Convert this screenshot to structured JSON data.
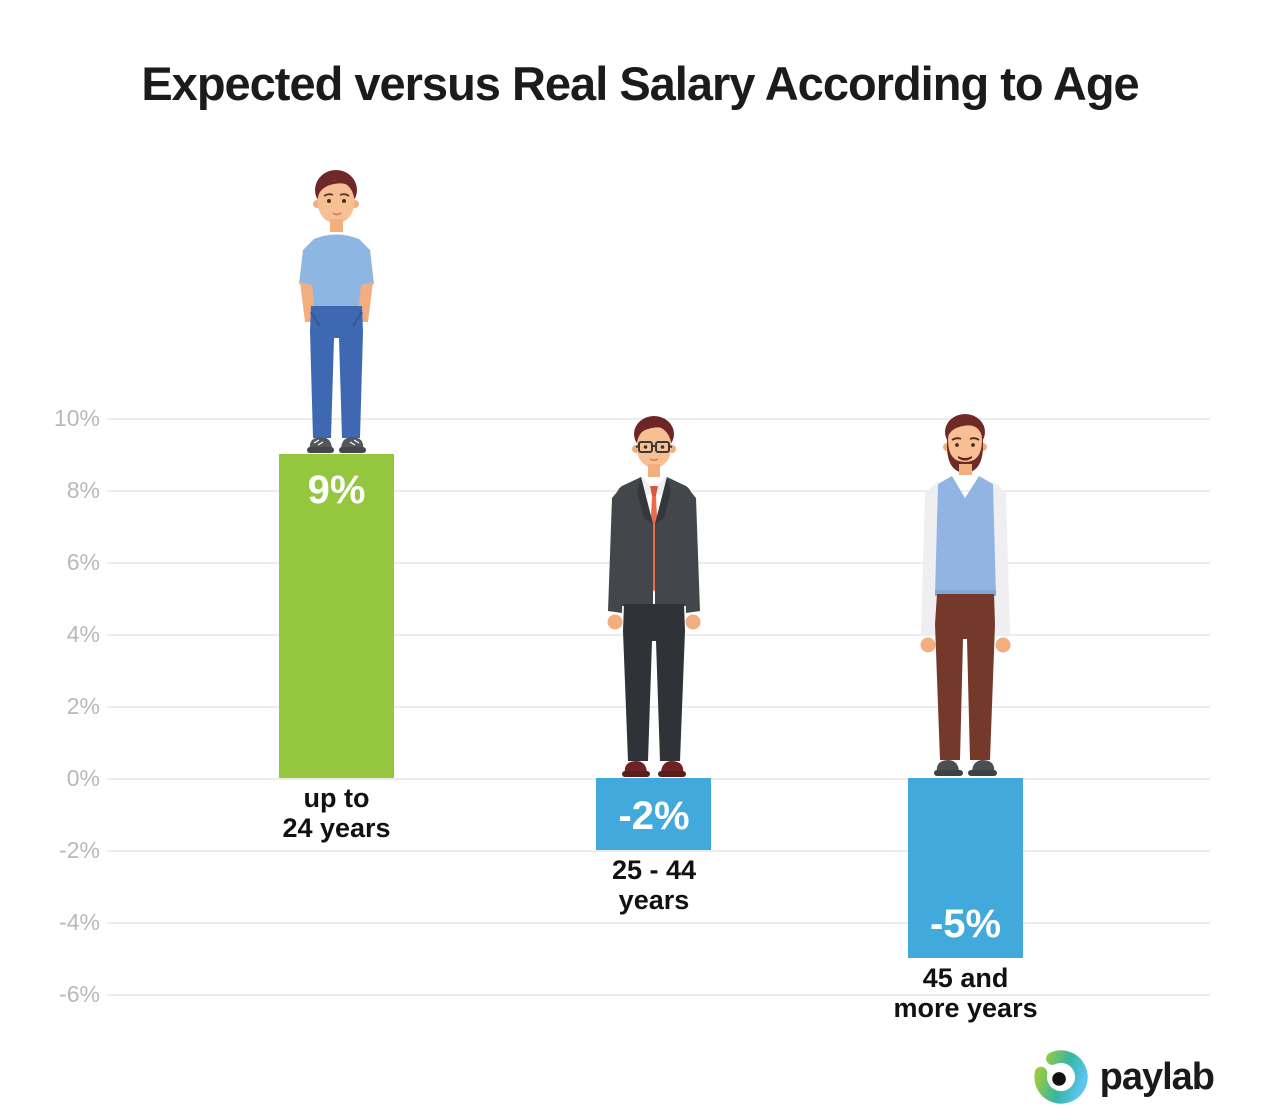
{
  "title": "Expected versus Real Salary According to Age",
  "chart_data": {
    "type": "bar",
    "title": "Expected versus Real Salary According to Age",
    "categories": [
      [
        "up to",
        "24 years"
      ],
      [
        "25 - 44",
        "years"
      ],
      [
        "45 and",
        "more years"
      ]
    ],
    "values": [
      9,
      -2,
      -5
    ],
    "value_labels": [
      "9%",
      "-2%",
      "-5%"
    ],
    "bar_colors": [
      "#95C73E",
      "#41A9DC",
      "#41A9DC"
    ],
    "xlabel": "",
    "ylabel": "",
    "ylim": [
      -6,
      10
    ],
    "ytick_step": 2,
    "ytick_labels": [
      "10%",
      "8%",
      "6%",
      "4%",
      "2%",
      "0%",
      "-2%",
      "-4%",
      "-6%"
    ],
    "grid": true,
    "legend": "none",
    "colors": {
      "gridline": "#ECECEC",
      "tick_label": "#B9B9B9",
      "value_label": "#FFFFFF",
      "category_label": "#111111",
      "title": "#1B1B1B",
      "background": "#FFFFFF"
    },
    "layout": {
      "bar_center_fracs": [
        0.2081,
        0.4959,
        0.7784
      ],
      "bar_width_frac": 0.1043
    }
  },
  "figures": [
    {
      "name": "young-man-casual",
      "description": "young man in light blue t-shirt and blue jeans, hands in pockets, standing on the 9% bar"
    },
    {
      "name": "businessman-suit",
      "description": "man with glasses in dark suit, white shirt and orange tie, standing on the -2% bar"
    },
    {
      "name": "bearded-man-vest",
      "description": "bearded man in light blue vest over white shirt and brown trousers, standing on the -5% bar"
    }
  ],
  "logo": {
    "text": "paylab",
    "text_color": "#1A1A1A",
    "swirl_green": "#9BCB3D",
    "swirl_teal": "#35B6A6",
    "swirl_blue": "#5BC5EF",
    "dot_color": "#121212"
  }
}
